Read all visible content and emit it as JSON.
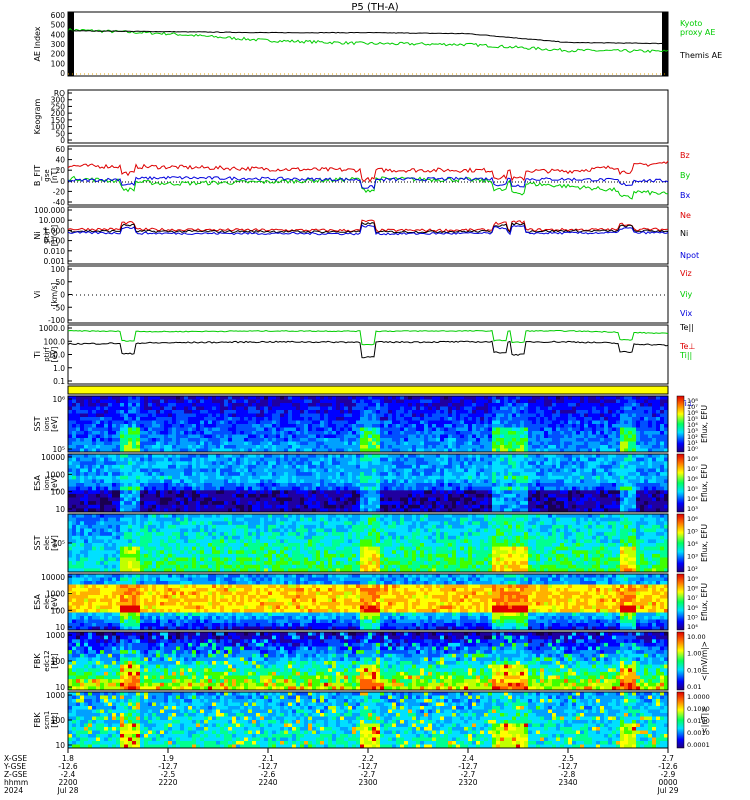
{
  "title": "P5 (TH-A)",
  "colors": {
    "green": "#00cc00",
    "red": "#dd0000",
    "blue": "#0000dd",
    "black": "#000000",
    "yellow": "#ffff00"
  },
  "panels": {
    "ae": {
      "ylabel": "AE Index",
      "ticks": [
        "600",
        "500",
        "400",
        "300",
        "200",
        "100",
        "0"
      ],
      "legend": [
        {
          "text": "Kyoto",
          "color": "#00cc00"
        },
        {
          "text": "proxy AE",
          "color": "#00cc00"
        },
        {
          "text": "Themis AE",
          "color": "#000000"
        }
      ]
    },
    "keo": {
      "ylabel": "Keogram",
      "ticks": [
        "RO",
        "300",
        "250",
        "200",
        "150",
        "100",
        "50",
        "0"
      ]
    },
    "bfield": {
      "ylabel": "B_FIT",
      "sub": "gse",
      "unit": "[nT]",
      "ticks": [
        "60",
        "40",
        "20",
        "0",
        "-20",
        "-40"
      ],
      "legend": [
        {
          "text": "Bz",
          "color": "#dd0000"
        },
        {
          "text": "By",
          "color": "#00cc00"
        },
        {
          "text": "Bx",
          "color": "#0000dd"
        }
      ]
    },
    "density": {
      "ylabel": "Ni",
      "sub": "ptirf",
      "unit": "[1/cc]",
      "ticks": [
        "100.000",
        "10.000",
        "1.000",
        "0.100",
        "0.010",
        "0.001"
      ],
      "legend": [
        {
          "text": "Ne",
          "color": "#dd0000"
        },
        {
          "text": "Ni",
          "color": "#000000"
        },
        {
          "text": "Npot",
          "color": "#0000dd"
        }
      ]
    },
    "velocity": {
      "ylabel": "Vi",
      "unit": "[km/s]",
      "ticks": [
        "100",
        "50",
        "0",
        "-50",
        "-100"
      ],
      "legend": [
        {
          "text": "Viz",
          "color": "#dd0000"
        },
        {
          "text": "Viy",
          "color": "#00cc00"
        },
        {
          "text": "Vix",
          "color": "#0000dd"
        }
      ]
    },
    "temp": {
      "ylabel": "Ti",
      "sub": "ptirf",
      "unit": "[eV]",
      "ticks": [
        "1000.0",
        "100.0",
        "10.0",
        "1.0",
        "0.1"
      ],
      "legend": [
        {
          "text": "Te||",
          "color": "#000000"
        },
        {
          "text": "Te⊥",
          "color": "#dd0000"
        },
        {
          "text": "Ti||",
          "color": "#00cc00"
        },
        {
          "text": "Ti⊥",
          "color": "#0000dd"
        }
      ]
    },
    "sst_ion": {
      "ylabel": "SST",
      "sub": "ions",
      "unit": "[eV]",
      "ticks": [
        "10⁶",
        "10⁵"
      ],
      "cbar": [
        "10⁸",
        "10⁷",
        "10⁶",
        "10⁵",
        "10⁴",
        "10³",
        "10²",
        "10¹",
        "10⁰"
      ],
      "cbar_label": "Eflux, EFU"
    },
    "esa_ion": {
      "ylabel": "ESA",
      "sub": "ions",
      "unit": "[eV]",
      "ticks": [
        "10000",
        "1000",
        "100",
        "10"
      ],
      "cbar": [
        "10⁸",
        "10⁷",
        "10⁶",
        "10⁵",
        "10⁴",
        "10³"
      ],
      "cbar_label": "Eflux, EFU"
    },
    "sst_elec": {
      "ylabel": "SST",
      "sub": "elec",
      "unit": "[eV]",
      "ticks": [
        "10⁵"
      ],
      "cbar": [
        "10⁶",
        "10⁵",
        "10⁴",
        "10³",
        "10²"
      ],
      "cbar_label": "Eflux, EFU"
    },
    "esa_elec": {
      "ylabel": "ESA",
      "sub": "elec",
      "unit": "[eV]",
      "ticks": [
        "10000",
        "1000",
        "100",
        "10"
      ],
      "cbar": [
        "10⁹",
        "10⁸",
        "10⁷",
        "10⁶",
        "10⁵",
        "10⁴"
      ],
      "cbar_label": "Eflux, EFU"
    },
    "fbk_e": {
      "ylabel": "FBK",
      "sub": "edc12",
      "unit": "[Hz]",
      "ticks": [
        "1000",
        "100",
        "10"
      ],
      "cbar": [
        "10.00",
        "1.00",
        "0.10",
        "0.01"
      ],
      "cbar_label": "<|mV/m|>"
    },
    "fbk_b": {
      "ylabel": "FBK",
      "sub": "scm1",
      "unit": "[Hz]",
      "ticks": [
        "1000",
        "100",
        "10"
      ],
      "cbar": [
        "1.0000",
        "0.1000",
        "0.0100",
        "0.0010",
        "0.0001"
      ],
      "cbar_label": "<|nT|>"
    }
  },
  "footer": {
    "labels": [
      "X-GSE",
      "Y-GSE",
      "Z-GSE",
      "hhmm",
      "2024"
    ],
    "columns": [
      [
        "1.8",
        "-12.6",
        "-2.4",
        "2200",
        "Jul 28"
      ],
      [
        "1.9",
        "-12.7",
        "-2.5",
        "2220",
        ""
      ],
      [
        "2.1",
        "-12.7",
        "-2.6",
        "2240",
        ""
      ],
      [
        "2.2",
        "-12.7",
        "-2.7",
        "2300",
        ""
      ],
      [
        "2.4",
        "-12.7",
        "-2.7",
        "2320",
        ""
      ],
      [
        "2.5",
        "-12.7",
        "-2.8",
        "2340",
        ""
      ],
      [
        "2.7",
        "-12.6",
        "-2.9",
        "0000",
        "Jul 29"
      ]
    ]
  },
  "chart_data": {
    "type": "line",
    "title": "P5 (TH-A)",
    "x": [
      "2200",
      "2220",
      "2240",
      "2300",
      "2320",
      "2340",
      "0000"
    ],
    "series": [
      {
        "name": "Kyoto proxy AE",
        "panel": "AE Index",
        "values": [
          470,
          430,
          360,
          330,
          320,
          260,
          250
        ]
      },
      {
        "name": "Themis AE",
        "panel": "AE Index",
        "values": [
          460,
          450,
          440,
          440,
          430,
          340,
          330
        ]
      },
      {
        "name": "Bz",
        "panel": "B_FIT",
        "values": [
          28,
          26,
          22,
          20,
          20,
          18,
          34
        ]
      },
      {
        "name": "By",
        "panel": "B_FIT",
        "values": [
          5,
          -5,
          -2,
          4,
          2,
          -10,
          -25
        ]
      },
      {
        "name": "Bx",
        "panel": "B_FIT",
        "values": [
          0,
          6,
          4,
          2,
          4,
          3,
          0
        ]
      },
      {
        "name": "Ne",
        "panel": "Ni",
        "values": [
          1.5,
          1.3,
          1.2,
          1.1,
          1.2,
          1.3,
          1.4
        ]
      },
      {
        "name": "Ni",
        "panel": "Ni",
        "values": [
          1.0,
          0.9,
          0.9,
          0.8,
          0.9,
          1.0,
          1.0
        ]
      },
      {
        "name": "Te||",
        "panel": "Ti",
        "values": [
          200,
          250,
          300,
          280,
          300,
          300,
          150
        ]
      },
      {
        "name": "Ti||",
        "panel": "Ti",
        "values": [
          2500,
          2200,
          2500,
          2400,
          2500,
          2500,
          1500
        ]
      }
    ]
  }
}
